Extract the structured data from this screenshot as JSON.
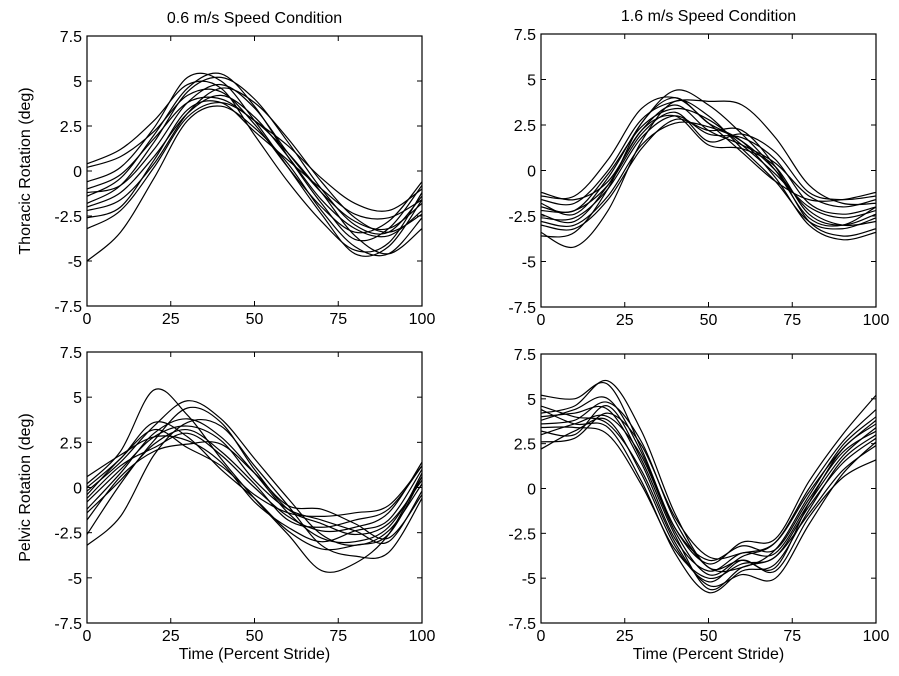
{
  "chart_data": [
    {
      "type": "line",
      "title": "0.6 m/s Speed Condition",
      "xlabel": "",
      "ylabel": "Thoracic Rotation (deg)",
      "xlim": [
        0,
        100
      ],
      "ylim": [
        -7.5,
        7.5
      ],
      "xticks": [
        "0",
        "25",
        "50",
        "75",
        "100"
      ],
      "yticks": [
        "-7.5",
        "-5",
        "-2.5",
        "0",
        "2.5",
        "5",
        "7.5"
      ],
      "x": [
        0,
        10,
        20,
        30,
        40,
        50,
        60,
        70,
        80,
        90,
        100
      ],
      "series": [
        {
          "values": [
            -1.2,
            -0.8,
            1.2,
            3.8,
            4.8,
            3.5,
            1.0,
            -1.2,
            -2.8,
            -3.2,
            -1.8
          ]
        },
        {
          "values": [
            -2.0,
            -1.2,
            0.8,
            3.2,
            4.2,
            3.0,
            0.8,
            -1.6,
            -3.2,
            -3.6,
            -2.2
          ]
        },
        {
          "values": [
            0.2,
            0.8,
            2.2,
            4.2,
            4.4,
            2.6,
            0.2,
            -2.0,
            -3.4,
            -2.8,
            -0.6
          ]
        },
        {
          "values": [
            -1.8,
            -0.8,
            1.6,
            4.4,
            5.2,
            4.0,
            1.6,
            -1.0,
            -3.0,
            -3.4,
            -1.4
          ]
        },
        {
          "values": [
            -3.2,
            -2.2,
            0.2,
            3.0,
            3.8,
            2.8,
            1.0,
            -1.2,
            -3.6,
            -4.6,
            -3.2
          ]
        },
        {
          "values": [
            -5.0,
            -3.4,
            -0.4,
            2.8,
            3.6,
            2.4,
            0.4,
            -2.2,
            -4.2,
            -4.6,
            -2.6
          ]
        },
        {
          "values": [
            -1.4,
            -0.4,
            2.0,
            4.6,
            5.4,
            3.6,
            0.8,
            -1.8,
            -3.8,
            -3.2,
            -0.8
          ]
        },
        {
          "values": [
            -2.6,
            -2.0,
            0.6,
            3.4,
            3.8,
            2.2,
            0.6,
            -1.0,
            -2.4,
            -2.6,
            -1.6
          ]
        },
        {
          "values": [
            0.4,
            1.2,
            2.8,
            4.8,
            4.6,
            2.0,
            -0.6,
            -2.8,
            -4.4,
            -4.0,
            -1.2
          ]
        },
        {
          "values": [
            -1.0,
            -0.2,
            1.8,
            3.8,
            4.0,
            2.8,
            1.4,
            -0.4,
            -1.8,
            -2.2,
            -1.0
          ]
        },
        {
          "values": [
            -2.2,
            -1.6,
            0.4,
            3.2,
            4.6,
            3.8,
            1.8,
            -0.6,
            -2.6,
            -3.4,
            -2.4
          ]
        },
        {
          "values": [
            -0.6,
            0.2,
            2.4,
            5.2,
            5.0,
            2.8,
            0.2,
            -2.4,
            -4.6,
            -4.2,
            -1.6
          ]
        }
      ]
    },
    {
      "type": "line",
      "title": "1.6 m/s Speed Condition",
      "xlabel": "",
      "ylabel": "",
      "xlim": [
        0,
        100
      ],
      "ylim": [
        -7.5,
        7.5
      ],
      "xticks": [
        "0",
        "25",
        "50",
        "75",
        "100"
      ],
      "yticks": [
        "-7.5",
        "-5",
        "-2.5",
        "0",
        "2.5",
        "5",
        "7.5"
      ],
      "x": [
        0,
        10,
        20,
        30,
        40,
        50,
        60,
        70,
        80,
        90,
        100
      ],
      "series": [
        {
          "values": [
            -1.2,
            -1.6,
            -0.6,
            2.2,
            3.6,
            2.2,
            1.4,
            0.4,
            -1.4,
            -2.0,
            -1.6
          ]
        },
        {
          "values": [
            -2.6,
            -2.6,
            -1.0,
            1.8,
            3.0,
            2.0,
            1.8,
            0.6,
            -1.8,
            -2.4,
            -2.0
          ]
        },
        {
          "values": [
            -3.4,
            -4.2,
            -2.2,
            1.6,
            3.8,
            3.0,
            1.2,
            -0.6,
            -2.8,
            -3.2,
            -2.6
          ]
        },
        {
          "values": [
            -1.8,
            -2.4,
            -0.4,
            2.6,
            4.4,
            3.6,
            2.0,
            0.0,
            -2.6,
            -3.0,
            -2.0
          ]
        },
        {
          "values": [
            -2.2,
            -2.2,
            -0.8,
            2.0,
            3.2,
            1.6,
            2.0,
            1.0,
            -1.2,
            -1.6,
            -1.4
          ]
        },
        {
          "values": [
            -1.6,
            -1.8,
            0.0,
            2.8,
            3.8,
            3.8,
            3.6,
            1.8,
            -0.8,
            -1.8,
            -1.8
          ]
        },
        {
          "values": [
            -2.8,
            -3.0,
            -1.4,
            1.4,
            2.6,
            2.4,
            1.6,
            0.0,
            -2.2,
            -3.0,
            -2.8
          ]
        },
        {
          "values": [
            -2.0,
            -2.2,
            -0.2,
            2.4,
            3.4,
            2.8,
            1.4,
            -0.2,
            -2.0,
            -2.6,
            -2.2
          ]
        },
        {
          "values": [
            -3.0,
            -3.2,
            -1.6,
            1.2,
            2.8,
            2.2,
            2.2,
            0.2,
            -2.8,
            -3.6,
            -3.2
          ]
        },
        {
          "values": [
            -1.4,
            -1.4,
            0.6,
            3.4,
            4.0,
            2.6,
            1.0,
            -0.6,
            -1.6,
            -1.6,
            -1.2
          ]
        },
        {
          "values": [
            -2.4,
            -2.8,
            -0.8,
            2.2,
            3.0,
            1.4,
            1.2,
            0.2,
            -2.4,
            -3.0,
            -2.4
          ]
        },
        {
          "values": [
            -3.6,
            -3.4,
            -1.0,
            2.6,
            4.0,
            2.6,
            1.6,
            -0.4,
            -3.0,
            -3.8,
            -3.4
          ]
        }
      ]
    },
    {
      "type": "line",
      "title": "",
      "xlabel": "Time (Percent Stride)",
      "ylabel": "Pelvic Rotation (deg)",
      "xlim": [
        0,
        100
      ],
      "ylim": [
        -7.5,
        7.5
      ],
      "xticks": [
        "0",
        "25",
        "50",
        "75",
        "100"
      ],
      "yticks": [
        "-7.5",
        "-5",
        "-2.5",
        "0",
        "2.5",
        "5",
        "7.5"
      ],
      "x": [
        0,
        10,
        20,
        30,
        40,
        50,
        60,
        70,
        80,
        90,
        100
      ],
      "series": [
        {
          "values": [
            -0.6,
            1.2,
            2.2,
            3.0,
            1.8,
            0.0,
            -1.6,
            -2.4,
            -2.2,
            -1.4,
            1.4
          ]
        },
        {
          "values": [
            -1.2,
            0.8,
            3.0,
            3.8,
            2.8,
            0.8,
            -1.4,
            -2.8,
            -3.0,
            -2.2,
            0.6
          ]
        },
        {
          "values": [
            -3.2,
            -1.6,
            1.8,
            3.6,
            3.4,
            1.2,
            -1.0,
            -3.2,
            -3.8,
            -3.6,
            -0.6
          ]
        },
        {
          "values": [
            0.2,
            2.0,
            5.4,
            4.0,
            1.6,
            -0.6,
            -2.6,
            -4.6,
            -4.2,
            -2.6,
            0.8
          ]
        },
        {
          "values": [
            -0.4,
            1.6,
            3.2,
            2.2,
            1.2,
            -0.4,
            -1.4,
            -1.6,
            -1.4,
            -1.0,
            1.2
          ]
        },
        {
          "values": [
            -2.6,
            0.2,
            2.6,
            4.4,
            3.6,
            1.0,
            -1.2,
            -2.0,
            -2.6,
            -2.0,
            0.4
          ]
        },
        {
          "values": [
            -1.8,
            0.6,
            2.0,
            2.4,
            2.4,
            0.8,
            -1.0,
            -1.2,
            -2.0,
            -2.8,
            -0.4
          ]
        },
        {
          "values": [
            0.6,
            1.8,
            2.8,
            2.6,
            1.4,
            -0.8,
            -2.2,
            -3.0,
            -2.4,
            -1.8,
            1.0
          ]
        },
        {
          "values": [
            -0.2,
            1.4,
            3.4,
            4.8,
            3.8,
            1.6,
            -0.6,
            -2.6,
            -3.2,
            -2.4,
            0.2
          ]
        },
        {
          "values": [
            -1.4,
            0.4,
            2.4,
            3.2,
            2.0,
            0.2,
            -1.8,
            -2.2,
            -1.8,
            -1.2,
            1.2
          ]
        },
        {
          "values": [
            -0.8,
            1.0,
            2.8,
            3.4,
            2.6,
            0.4,
            -1.2,
            -1.8,
            -2.4,
            -3.0,
            -0.2
          ]
        },
        {
          "values": [
            0.0,
            1.6,
            3.6,
            2.8,
            1.0,
            -0.6,
            -2.4,
            -3.4,
            -3.2,
            -2.6,
            0.6
          ]
        }
      ]
    },
    {
      "type": "line",
      "title": "",
      "xlabel": "Time (Percent Stride)",
      "ylabel": "",
      "xlim": [
        0,
        100
      ],
      "ylim": [
        -7.5,
        7.5
      ],
      "xticks": [
        "0",
        "25",
        "50",
        "75",
        "100"
      ],
      "yticks": [
        "-7.5",
        "-5",
        "-2.5",
        "0",
        "2.5",
        "5",
        "7.5"
      ],
      "x": [
        0,
        10,
        20,
        30,
        40,
        50,
        60,
        70,
        80,
        90,
        100
      ],
      "series": [
        {
          "values": [
            4.0,
            4.2,
            4.4,
            1.4,
            -2.8,
            -4.6,
            -3.6,
            -3.6,
            -0.8,
            1.8,
            3.4
          ]
        },
        {
          "values": [
            5.2,
            5.0,
            5.8,
            2.2,
            -2.2,
            -4.2,
            -3.0,
            -2.8,
            0.4,
            3.0,
            5.2
          ]
        },
        {
          "values": [
            2.2,
            3.2,
            3.8,
            0.8,
            -3.2,
            -5.2,
            -4.0,
            -4.6,
            -1.6,
            0.6,
            1.6
          ]
        },
        {
          "values": [
            3.6,
            3.8,
            4.8,
            2.6,
            -1.8,
            -4.4,
            -4.4,
            -3.4,
            -0.4,
            2.4,
            4.0
          ]
        },
        {
          "values": [
            4.4,
            3.6,
            3.4,
            0.4,
            -3.6,
            -5.8,
            -4.6,
            -4.2,
            -1.2,
            1.6,
            3.0
          ]
        },
        {
          "values": [
            3.0,
            3.6,
            4.0,
            1.8,
            -2.4,
            -4.8,
            -3.8,
            -3.0,
            0.0,
            2.6,
            4.4
          ]
        },
        {
          "values": [
            3.8,
            4.4,
            5.0,
            2.0,
            -2.2,
            -4.0,
            -3.2,
            -3.4,
            -0.6,
            2.0,
            3.2
          ]
        },
        {
          "values": [
            4.6,
            4.0,
            3.6,
            1.0,
            -3.0,
            -5.4,
            -4.8,
            -5.0,
            -2.0,
            0.8,
            2.6
          ]
        },
        {
          "values": [
            2.6,
            2.8,
            4.2,
            2.4,
            -1.6,
            -3.8,
            -3.6,
            -3.0,
            -0.2,
            2.2,
            3.8
          ]
        },
        {
          "values": [
            3.4,
            3.4,
            3.0,
            0.2,
            -3.4,
            -5.0,
            -4.2,
            -3.8,
            -1.0,
            1.4,
            2.8
          ]
        },
        {
          "values": [
            4.2,
            4.6,
            6.0,
            3.2,
            -1.4,
            -4.4,
            -4.0,
            -4.4,
            -0.8,
            2.2,
            3.6
          ]
        },
        {
          "values": [
            3.2,
            3.0,
            4.6,
            1.6,
            -2.6,
            -5.6,
            -4.4,
            -3.8,
            -1.4,
            1.0,
            2.4
          ]
        }
      ]
    }
  ]
}
